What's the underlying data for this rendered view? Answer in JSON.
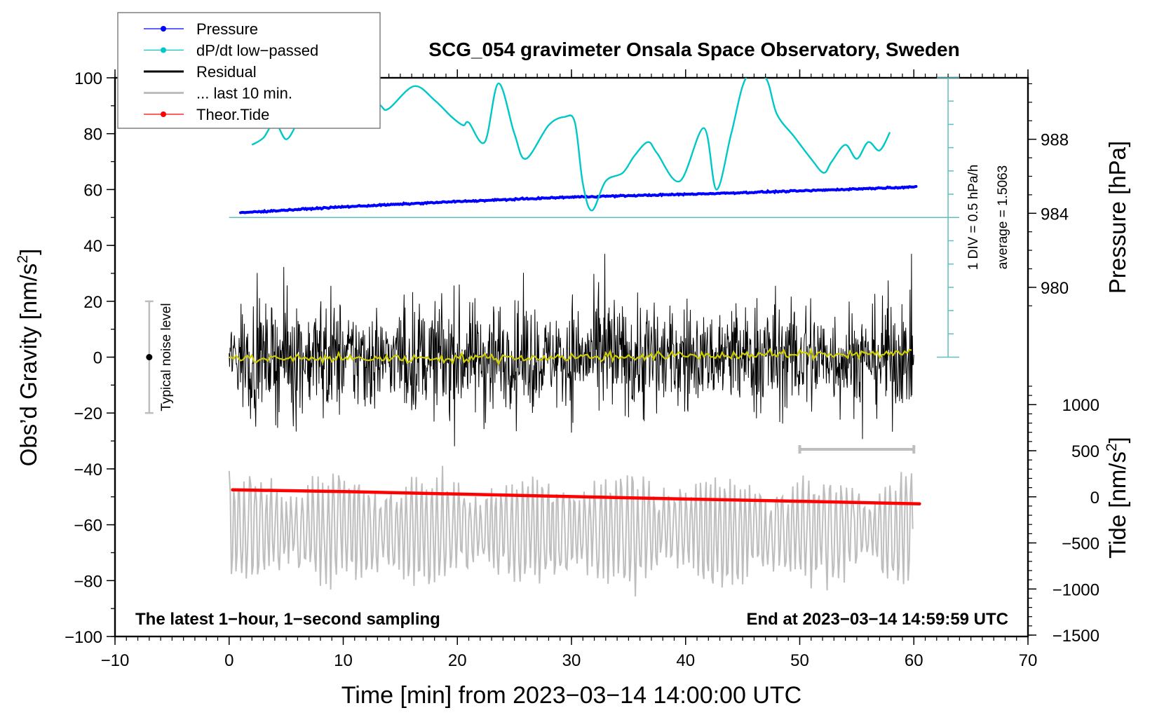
{
  "chart_data": {
    "type": "line",
    "title": "SCG_054 gravimeter Onsala Space Observatory, Sweden",
    "xlabel": "Time [min] from 2023−03−14 14:00:00 UTC",
    "xlim": [
      -10,
      70
    ],
    "xticks": [
      -10,
      0,
      10,
      20,
      30,
      40,
      50,
      60,
      70
    ],
    "xtick_labels": [
      "−10",
      "0",
      "10",
      "20",
      "30",
      "40",
      "50",
      "60",
      "70"
    ],
    "x_minor_step": 1,
    "axes": {
      "left": {
        "label_main": "Obs’d Gravity [nm/s",
        "label_sup": "2",
        "label_end": "]",
        "ylim": [
          -100,
          100
        ],
        "ticks": [
          100,
          80,
          60,
          40,
          20,
          0,
          -20,
          -40,
          -60,
          -80,
          -100
        ],
        "tick_labels": [
          "100",
          "80",
          "60",
          "40",
          "20",
          "0",
          "−20",
          "−40",
          "−60",
          "−80",
          "−100"
        ],
        "minor_step": 10
      },
      "pressure": {
        "label": "Pressure [hPa]",
        "ticks": [
          988,
          984,
          980
        ],
        "tick_labels": [
          "988",
          "984",
          "980"
        ],
        "gravity_equiv": {
          "988": 78,
          "984": 50,
          "980": 25
        },
        "range": [
          979,
          992
        ],
        "minor_step": 1
      },
      "tide": {
        "label_main": "Tide [nm/s",
        "label_sup": "2",
        "label_end": "]",
        "ticks": [
          1000,
          500,
          0,
          -500,
          -1000,
          -1500
        ],
        "tick_labels": [
          "1000",
          "500",
          "0",
          "−500",
          "−1000",
          "−1500"
        ],
        "gravity_equiv": {
          "1000": -17,
          "0": -50,
          "-1500": -100
        },
        "minor_step": 100
      }
    },
    "dpdt_scale": {
      "label_div": "1 DIV = 0.5 hPa/h",
      "label_avg": "average = 1.5063",
      "baseline_x": 63,
      "baseline_gravity": 50,
      "top_gravity": 100,
      "bottom_gravity": 0,
      "div_count": 12
    },
    "legend": {
      "position": "top-left",
      "entries": [
        {
          "name": "Pressure",
          "color": "#0000ff",
          "style": "line-marker"
        },
        {
          "name": "dP/dt low−passed",
          "color": "#00c8c8",
          "style": "line-marker"
        },
        {
          "name": "Residual",
          "color": "#000000",
          "style": "line"
        },
        {
          "name": "... last 10 min.",
          "color": "#bebebe",
          "style": "line"
        },
        {
          "name": "Theor.Tide",
          "color": "#ff0000",
          "style": "line-marker"
        }
      ]
    },
    "annotations": {
      "bottom_left": "The latest 1−hour, 1−second sampling",
      "bottom_right": "End at 2023−03−14 14:59:59 UTC",
      "noise_label": "Typical noise level",
      "noise_bar": {
        "x": -7,
        "center": 0,
        "low": -20,
        "high": 20
      },
      "last10_bar": {
        "x_start": 50,
        "x_end": 60,
        "gravity": -33
      }
    },
    "series": [
      {
        "name": "Pressure",
        "color": "#0000ff",
        "unit": "gravity-equivalent on left axis",
        "x": [
          1,
          10,
          20,
          30,
          40,
          50,
          60.3
        ],
        "values": [
          51.7,
          53.8,
          55.7,
          57.3,
          58.3,
          59.5,
          61
        ]
      },
      {
        "name": "dP/dt low-passed",
        "color": "#00c8c8",
        "unit": "gravity-equivalent on left axis",
        "x": [
          2,
          3,
          4,
          5,
          6,
          7,
          8,
          10,
          12,
          13.3,
          14,
          16.2,
          18,
          19.5,
          20.5,
          21,
          22.4,
          23.6,
          25,
          26,
          28,
          29.4,
          30.3,
          31,
          31.8,
          33,
          34.5,
          35.5,
          36.7,
          37.5,
          39.5,
          41.6,
          42.7,
          44,
          45.3,
          47,
          48,
          49.5,
          51,
          52.1,
          52.8,
          54,
          55,
          56,
          57,
          57.9
        ],
        "values": [
          76,
          78.5,
          84,
          78,
          84,
          90,
          95,
          92,
          96,
          90,
          89,
          97,
          92,
          86,
          83,
          84,
          77,
          98,
          80,
          71,
          83,
          86,
          84,
          62,
          52.5,
          63,
          66,
          72,
          77,
          73,
          63,
          82,
          60,
          80,
          100,
          100,
          87,
          79,
          71,
          66,
          70,
          76,
          71,
          77,
          74,
          80.5
        ]
      },
      {
        "name": "Residual",
        "color": "#000000",
        "x_range": [
          0,
          60
        ],
        "typical_range": [
          -25,
          25
        ],
        "extremes": [
          -37,
          37
        ]
      },
      {
        "name": "Residual smoothed",
        "color": "#cccc00",
        "x": [
          0,
          10,
          20,
          30,
          40,
          50,
          60
        ],
        "values": [
          -0.5,
          -0.5,
          -0.3,
          0,
          0.5,
          1,
          1.5
        ]
      },
      {
        "name": "... last 10 min.",
        "color": "#bebebe",
        "x_range": [
          0,
          60
        ],
        "baseline": -62,
        "extremes": [
          -32,
          -92
        ]
      },
      {
        "name": "Theor.Tide",
        "color": "#ff0000",
        "unit": "gravity-equivalent on left axis",
        "x": [
          0.3,
          10,
          20,
          30,
          40,
          50,
          60.5
        ],
        "values": [
          -47.5,
          -48.1,
          -49.0,
          -49.9,
          -50.8,
          -51.6,
          -52.5
        ]
      }
    ]
  }
}
